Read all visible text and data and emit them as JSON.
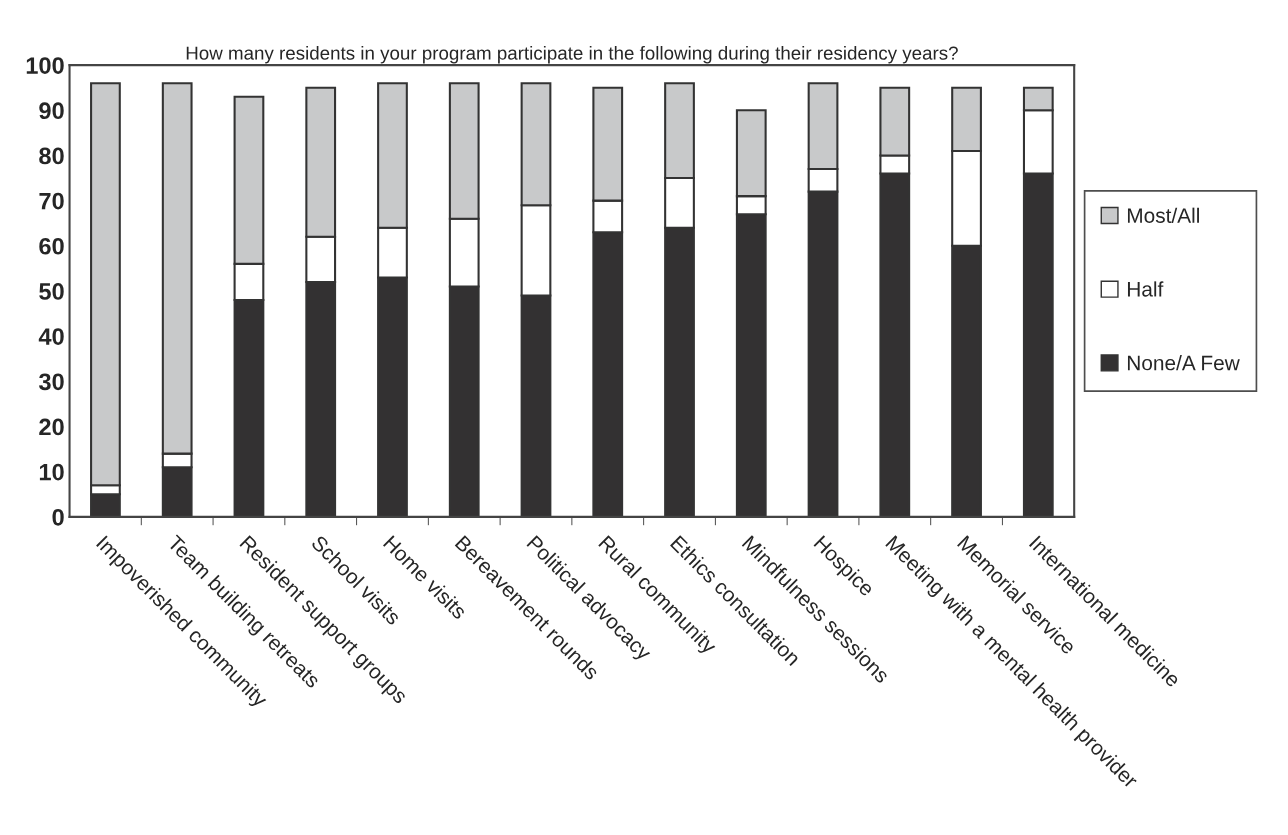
{
  "chart_data": {
    "type": "bar",
    "stacked": true,
    "title": "How many residents in your program participate in the following during their residency years?",
    "categories": [
      "Impoverished community",
      "Team building retreats",
      "Resident support groups",
      "School visits",
      "Home visits",
      "Bereavement rounds",
      "Political advocacy",
      "Rural community",
      "Ethics consultation",
      "Mindfulness sessions",
      "Hospice",
      "Meeting with a mental health provider",
      "Memorial service",
      "International medicine"
    ],
    "series": [
      {
        "name": "None/A Few",
        "color": "#333132",
        "values": [
          5,
          11,
          48,
          52,
          53,
          51,
          49,
          63,
          64,
          67,
          72,
          76,
          60,
          76
        ]
      },
      {
        "name": "Half",
        "color": "#ffffff",
        "values": [
          2,
          3,
          8,
          10,
          11,
          15,
          20,
          7,
          11,
          4,
          5,
          4,
          21,
          14
        ]
      },
      {
        "name": "Most/All",
        "color": "#c8c9ca",
        "values": [
          89,
          82,
          37,
          33,
          32,
          30,
          27,
          25,
          21,
          19,
          19,
          15,
          14,
          5
        ]
      }
    ],
    "ylim": [
      0,
      100
    ],
    "yticks": [
      0,
      10,
      20,
      30,
      40,
      50,
      60,
      70,
      80,
      90,
      100
    ],
    "grid": false,
    "legend": "right"
  }
}
